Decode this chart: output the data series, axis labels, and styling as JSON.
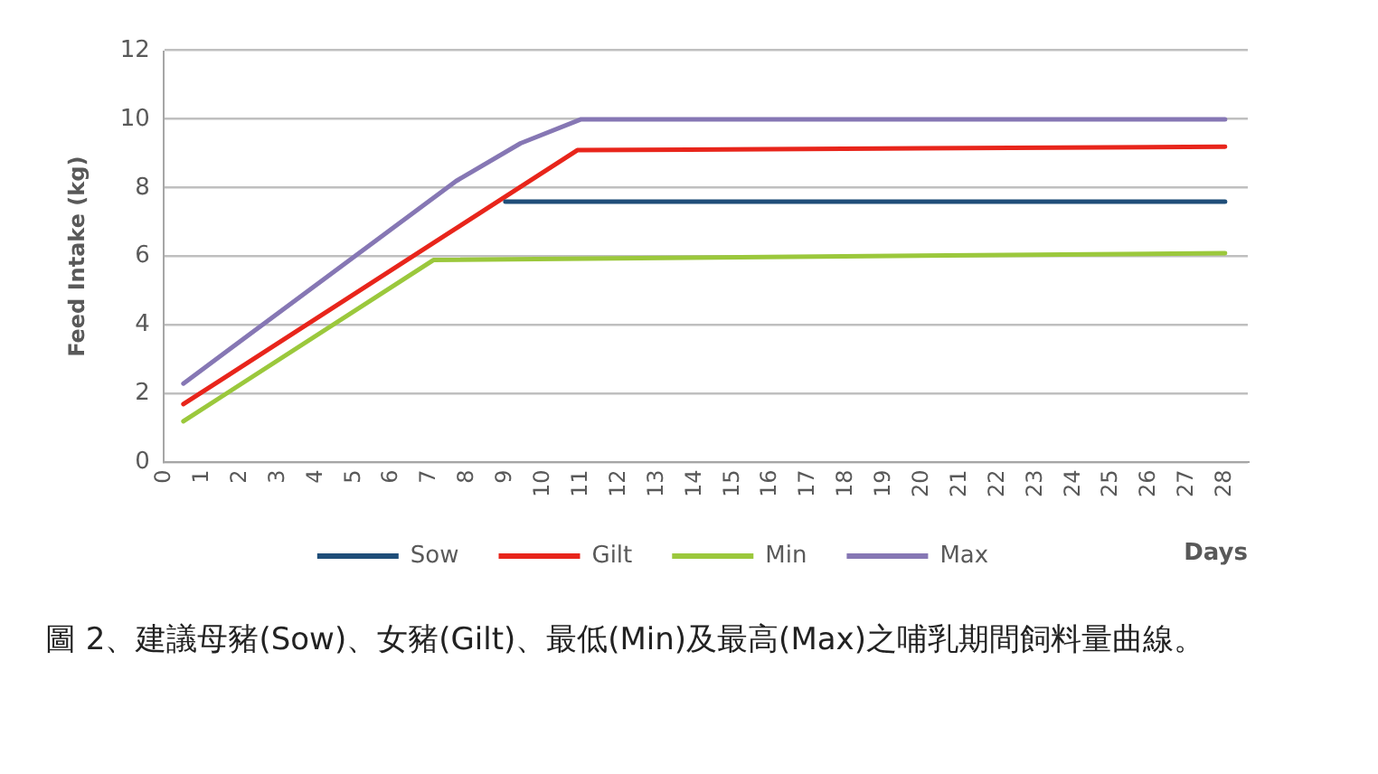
{
  "chart_data": {
    "type": "line",
    "ylabel": "Feed Intake (kg)",
    "xlabel": "Days",
    "xlim": [
      0,
      28.6
    ],
    "xticks": [
      0,
      1,
      2,
      3,
      4,
      5,
      6,
      7,
      8,
      9,
      10,
      11,
      12,
      13,
      14,
      15,
      16,
      17,
      18,
      19,
      20,
      21,
      22,
      23,
      24,
      25,
      26,
      27,
      28
    ],
    "ylim": [
      0,
      12
    ],
    "yticks": [
      0,
      2,
      4,
      6,
      8,
      10,
      12
    ],
    "grid": "y",
    "legend": "bottom",
    "marker": "none",
    "line_style": "solid",
    "series": [
      {
        "name": "Sow",
        "color": "#1f4e79",
        "x": [
          9,
          28
        ],
        "values": [
          7.6,
          7.6
        ]
      },
      {
        "name": "Gilt",
        "color": "#e8251b",
        "x": [
          0.5,
          10.9,
          28
        ],
        "values": [
          1.7,
          9.1,
          9.2
        ]
      },
      {
        "name": "Min",
        "color": "#9bc83c",
        "x": [
          0.5,
          7.1,
          28
        ],
        "values": [
          1.2,
          5.9,
          6.1
        ]
      },
      {
        "name": "Max",
        "color": "#8677b4",
        "x": [
          0.5,
          7.7,
          9.4,
          11,
          28
        ],
        "values": [
          2.3,
          8.2,
          9.3,
          10,
          10
        ]
      }
    ],
    "annotations": [
      "圖 2、建議母豬(Sow)、女豬(Gilt)、最低(Min)及最高(Max)之哺乳期間飼料量曲線。"
    ]
  }
}
